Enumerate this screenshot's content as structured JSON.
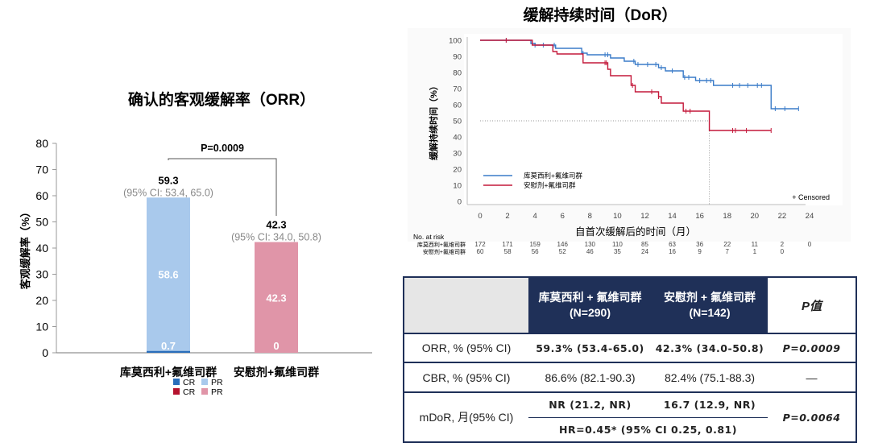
{
  "chart_data": [
    {
      "type": "bar",
      "stacked": true,
      "title": "确认的客观缓解率（ORR）",
      "ylabel": "客观缓解率（%）",
      "ylim": [
        0,
        80
      ],
      "yticks": [
        0,
        10,
        20,
        30,
        40,
        50,
        60,
        70,
        80
      ],
      "categories": [
        "库莫西利+氟维司群",
        "安慰剂+氟维司群"
      ],
      "series": [
        {
          "name": "CR",
          "values": [
            0.7,
            0
          ],
          "colors": [
            "#2a6ebb",
            "#b5122e"
          ]
        },
        {
          "name": "PR",
          "values": [
            58.6,
            42.3
          ],
          "colors": [
            "#a9c9ec",
            "#e095a8"
          ]
        }
      ],
      "totals": [
        "59.3",
        "42.3"
      ],
      "ci": [
        "(95% CI: 53.4, 65.0)",
        "(95% CI: 34.0, 50.8)"
      ],
      "segment_labels": {
        "CR": [
          "0.7",
          "0"
        ],
        "PR": [
          "58.6",
          "42.3"
        ]
      },
      "p_value": "P=0.0009",
      "legend": [
        {
          "label": "CR",
          "color": "#2a6ebb"
        },
        {
          "label": "PR",
          "color": "#a9c9ec"
        },
        {
          "label": "CR",
          "color": "#b5122e"
        },
        {
          "label": "PR",
          "color": "#e095a8"
        }
      ]
    },
    {
      "type": "line",
      "subtype": "kaplan-meier",
      "title": "缓解持续时间（DoR）",
      "xlabel": "自首次缓解后的时间（月）",
      "ylabel": "缓解持续时间（%）",
      "xlim": [
        0,
        24
      ],
      "ylim": [
        0,
        100
      ],
      "xticks": [
        0,
        2,
        4,
        6,
        8,
        10,
        12,
        14,
        16,
        18,
        20,
        22,
        24
      ],
      "yticks": [
        0,
        10,
        20,
        30,
        40,
        50,
        60,
        70,
        80,
        90,
        100
      ],
      "median_reference": {
        "y": 50,
        "x": 16.7
      },
      "censored_label": "+ Censored",
      "series": [
        {
          "name": "库莫西利+氟维司群",
          "color": "#3a7bc8",
          "steps": [
            [
              0,
              100
            ],
            [
              3.7,
              98
            ],
            [
              4,
              97
            ],
            [
              5.5,
              95
            ],
            [
              7.4,
              92
            ],
            [
              7.8,
              91
            ],
            [
              9.5,
              89
            ],
            [
              10.5,
              87
            ],
            [
              11.3,
              85
            ],
            [
              13,
              83
            ],
            [
              13.5,
              81
            ],
            [
              14.8,
              77
            ],
            [
              15.7,
              75
            ],
            [
              17,
              72
            ],
            [
              21.2,
              57.5
            ]
          ],
          "end": 23.2,
          "censored": [
            1.9,
            4,
            4.6,
            5.4,
            7.5,
            9.1,
            9.3,
            11.2,
            11.5,
            12.2,
            12.8,
            13.2,
            14,
            14.9,
            15.2,
            16,
            16.5,
            16.8,
            18.4,
            18.9,
            19.5,
            20.2,
            20.5,
            21.5,
            22.2,
            23.2
          ]
        },
        {
          "name": "安慰剂+氟维司群",
          "color": "#c4183a",
          "steps": [
            [
              0,
              100
            ],
            [
              3.8,
              97
            ],
            [
              5.3,
              93
            ],
            [
              5.6,
              91.5
            ],
            [
              7.5,
              86
            ],
            [
              9.3,
              82
            ],
            [
              9.5,
              78
            ],
            [
              11,
              72
            ],
            [
              11.3,
              68
            ],
            [
              13,
              65
            ],
            [
              13.2,
              61
            ],
            [
              14.8,
              56
            ],
            [
              16.7,
              44
            ]
          ],
          "end": 21.2,
          "censored": [
            1.9,
            9.1,
            9.2,
            11.1,
            12.5,
            13,
            15,
            15.3,
            18.4,
            18.6,
            19.4,
            21.2
          ]
        }
      ],
      "risk_table": {
        "title": "No. at risk",
        "rows": [
          {
            "label": "库莫西利+氟维司群",
            "values": [
              "172",
              "171",
              "159",
              "146",
              "130",
              "110",
              "85",
              "63",
              "36",
              "22",
              "11",
              "2",
              "0"
            ]
          },
          {
            "label": "安慰剂+氟维司群",
            "values": [
              "60",
              "58",
              "56",
              "52",
              "46",
              "35",
              "24",
              "16",
              "9",
              "7",
              "1",
              "0",
              ""
            ]
          }
        ]
      }
    }
  ],
  "table": {
    "headers": [
      "",
      "库莫西利 + 氟维司群 (N=290)",
      "安慰剂 + 氟维司群 (N=142)",
      "P值"
    ],
    "rows": [
      {
        "label": "ORR, % (95% CI)",
        "a": "59.3% (53.4-65.0)",
        "b": "42.3% (34.0-50.8)",
        "p": "P=0.0009"
      },
      {
        "label": "CBR, % (95% CI)",
        "a": "86.6% (82.1-90.3)",
        "b": "82.4% (75.1-88.3)",
        "p": "—"
      },
      {
        "label": "mDoR, 月(95% CI)",
        "a": "NR (21.2, NR)",
        "b": "16.7 (12.9, NR)",
        "hr": "HR=0.45* (95% CI 0.25, 0.81)",
        "p": "P=0.0064"
      }
    ]
  }
}
